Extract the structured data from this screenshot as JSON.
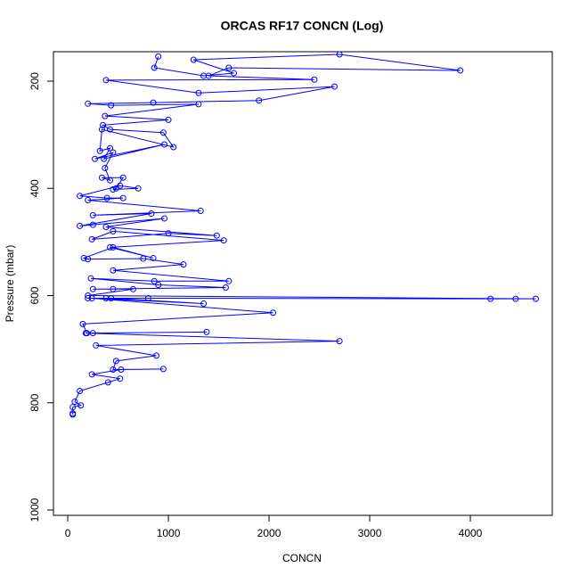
{
  "chart_data": {
    "type": "line",
    "title": "ORCAS RF17 CONCN (Log)",
    "x_label": "CONCN",
    "y_label": "Pressure (mbar)",
    "x": [
      900,
      860,
      1350,
      1650,
      1250,
      2700,
      3900,
      1600,
      1400,
      2450,
      380,
      1300,
      2650,
      1900,
      850,
      200,
      430,
      1300,
      370,
      1000,
      350,
      420,
      950,
      1050,
      340,
      320,
      420,
      360,
      960,
      270,
      450,
      370,
      420,
      340,
      550,
      480,
      450,
      700,
      520,
      120,
      390,
      550,
      200,
      1320,
      250,
      830,
      120,
      250,
      960,
      380,
      1480,
      1000,
      240,
      450,
      1550,
      420,
      850,
      450,
      160,
      200,
      750,
      1150,
      450,
      1600,
      860,
      230,
      900,
      1570,
      250,
      450,
      650,
      200,
      4650,
      4450,
      4200,
      800,
      380,
      200,
      430,
      1350,
      240,
      2040,
      150,
      190,
      1380,
      250,
      180,
      2700,
      280,
      880,
      480,
      450,
      950,
      530,
      240,
      520,
      400,
      120,
      70,
      130,
      50,
      50,
      50
    ],
    "series": [
      {
        "color": "#0000ff",
        "values": [
          154,
          175,
          190,
          185,
          160,
          150,
          180,
          175,
          190,
          197,
          198,
          222,
          210,
          236,
          240,
          242,
          245,
          243,
          265,
          272,
          282,
          290,
          296,
          323,
          290,
          330,
          325,
          345,
          318,
          345,
          333,
          362,
          385,
          380,
          380,
          400,
          402,
          400,
          395,
          414,
          418,
          418,
          422,
          442,
          450,
          447,
          470,
          468,
          456,
          472,
          488,
          484,
          495,
          480,
          497,
          510,
          530,
          510,
          530,
          532,
          531,
          542,
          553,
          573,
          573,
          568,
          580,
          585,
          588,
          588,
          588,
          600,
          606,
          606,
          606,
          605,
          605,
          605,
          605,
          615,
          605,
          632,
          653,
          670,
          668,
          670,
          670,
          685,
          693,
          712,
          722,
          738,
          737,
          738,
          747,
          755,
          762,
          778,
          798,
          805,
          808,
          820,
          822
        ]
      }
    ],
    "xlim": [
      -142,
      4814
    ],
    "ylim": [
      1010,
      145
    ],
    "xticks": [
      0,
      1000,
      2000,
      3000,
      4000
    ],
    "yticks": [
      200,
      400,
      600,
      800,
      1000
    ]
  }
}
